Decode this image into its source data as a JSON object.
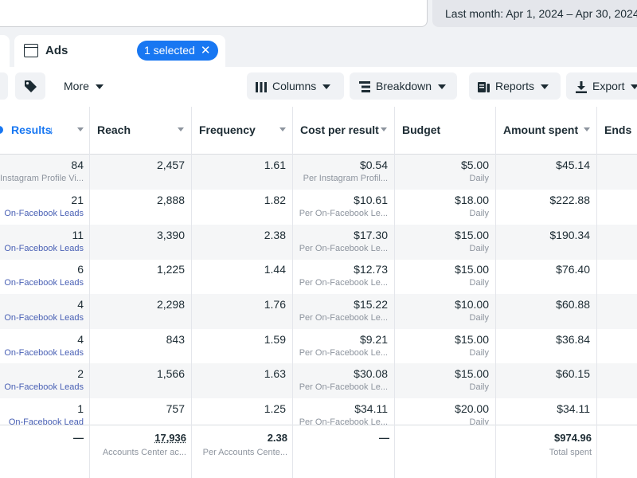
{
  "header": {
    "date_range": "Last month: Apr 1, 2024 – Apr 30, 2024"
  },
  "tabs": {
    "ads_label": "Ads",
    "selected_label": "1 selected",
    "clear_icon": "close-icon"
  },
  "toolbar": {
    "more_label": "More",
    "columns_label": "Columns",
    "breakdown_label": "Breakdown",
    "reports_label": "Reports",
    "export_label": "Export"
  },
  "table": {
    "columns": [
      "Results",
      "Reach",
      "Frequency",
      "Cost per result",
      "Budget",
      "Amount spent",
      "Ends"
    ],
    "rows": [
      {
        "results": "84",
        "results_type": "Instagram Profile Vi...",
        "reach": "2,457",
        "frequency": "1.61",
        "cost": "$0.54",
        "cost_type": "Per Instagram Profil...",
        "budget": "$5.00",
        "budget_type": "Daily",
        "spent": "$45.14"
      },
      {
        "results": "21",
        "results_type": "On-Facebook Leads",
        "reach": "2,888",
        "frequency": "1.82",
        "cost": "$10.61",
        "cost_type": "Per On-Facebook Le...",
        "budget": "$18.00",
        "budget_type": "Daily",
        "spent": "$222.88"
      },
      {
        "results": "11",
        "results_type": "On-Facebook Leads",
        "reach": "3,390",
        "frequency": "2.38",
        "cost": "$17.30",
        "cost_type": "Per On-Facebook Le...",
        "budget": "$15.00",
        "budget_type": "Daily",
        "spent": "$190.34"
      },
      {
        "results": "6",
        "results_type": "On-Facebook Leads",
        "reach": "1,225",
        "frequency": "1.44",
        "cost": "$12.73",
        "cost_type": "Per On-Facebook Le...",
        "budget": "$15.00",
        "budget_type": "Daily",
        "spent": "$76.40"
      },
      {
        "results": "4",
        "results_type": "On-Facebook Leads",
        "reach": "2,298",
        "frequency": "1.76",
        "cost": "$15.22",
        "cost_type": "Per On-Facebook Le...",
        "budget": "$10.00",
        "budget_type": "Daily",
        "spent": "$60.88"
      },
      {
        "results": "4",
        "results_type": "On-Facebook Leads",
        "reach": "843",
        "frequency": "1.59",
        "cost": "$9.21",
        "cost_type": "Per On-Facebook Le...",
        "budget": "$15.00",
        "budget_type": "Daily",
        "spent": "$36.84"
      },
      {
        "results": "2",
        "results_type": "On-Facebook Leads",
        "reach": "1,566",
        "frequency": "1.63",
        "cost": "$30.08",
        "cost_type": "Per On-Facebook Le...",
        "budget": "$15.00",
        "budget_type": "Daily",
        "spent": "$60.15"
      },
      {
        "results": "1",
        "results_type": "On-Facebook Lead",
        "reach": "757",
        "frequency": "1.25",
        "cost": "$34.11",
        "cost_type": "Per On-Facebook Le...",
        "budget": "$20.00",
        "budget_type": "Daily",
        "spent": "$34.11"
      }
    ],
    "totals": {
      "results": "—",
      "reach": "17,936",
      "reach_sub": "Accounts Center ac...",
      "frequency": "2.38",
      "frequency_sub": "Per Accounts Cente...",
      "cost": "—",
      "spent": "$974.96",
      "spent_sub": "Total spent"
    }
  },
  "colors": {
    "accent": "#1877f2",
    "link_text": "#4a61b5"
  }
}
